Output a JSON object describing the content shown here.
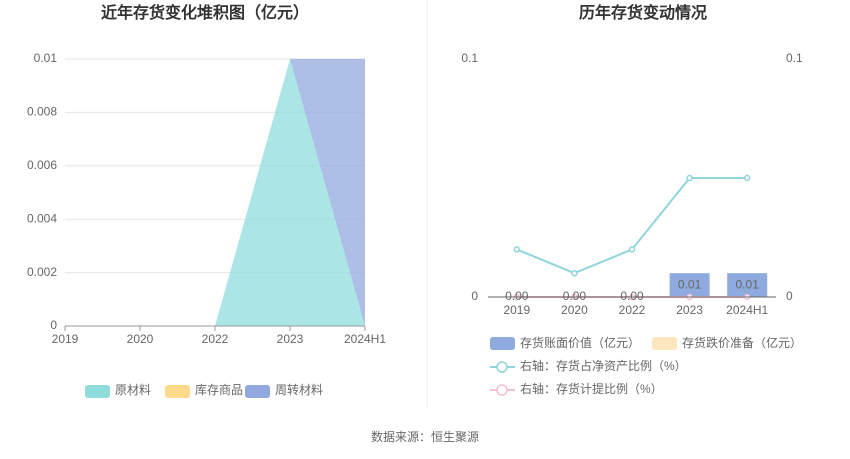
{
  "chart_data": [
    {
      "type": "area",
      "title": "近年存货变化堆积图（亿元）",
      "stacked": true,
      "grid": true,
      "legend": "bottom",
      "categories": [
        "2019",
        "2020",
        "2022",
        "2023",
        "2024H1"
      ],
      "series": [
        {
          "name": "原材料",
          "color": "#8fdcdc",
          "values": [
            0,
            0,
            0,
            0.01,
            0
          ]
        },
        {
          "name": "库存商品",
          "color": "#fdd98b",
          "values": [
            0,
            0,
            0,
            0,
            0
          ]
        },
        {
          "name": "周转材料",
          "color": "#91a9df",
          "values": [
            0,
            0,
            0,
            0,
            0.01
          ]
        }
      ],
      "ylim": [
        0,
        0.01
      ],
      "yticks": [
        0,
        0.002,
        0.004,
        0.006,
        0.008,
        0.01
      ]
    },
    {
      "type": "bar",
      "title": "历年存货变动情况",
      "stacked": true,
      "legend": "bottom",
      "categories": [
        "2019",
        "2020",
        "2022",
        "2023",
        "2024H1"
      ],
      "series": [
        {
          "name": "存货账面价值（亿元）",
          "type": "bar",
          "color": "#8eaadf",
          "values": [
            0,
            0,
            0,
            0.01,
            0.01
          ],
          "value_labels": [
            "0.00",
            "0.00",
            "0.00",
            "0.01",
            "0.01"
          ]
        },
        {
          "name": "存货跌价准备（亿元）",
          "type": "bar",
          "color": "#fde6bd",
          "values": [
            0,
            0,
            0,
            0,
            0
          ]
        },
        {
          "name": "右轴：存货占净资产比例（%）",
          "type": "line",
          "axis": "y2",
          "color": "#8fd4dc",
          "values": [
            0.02,
            0.01,
            0.02,
            0.05,
            0.05
          ]
        },
        {
          "name": "右轴：存货计提比例（%）",
          "type": "line",
          "axis": "y2",
          "color": "#f2bfd6",
          "values": [
            0,
            0,
            0,
            0,
            0
          ]
        }
      ],
      "ylim": [
        0,
        0.1
      ],
      "yticks": [
        0,
        0.1
      ],
      "y2lim": [
        0,
        0.1
      ],
      "y2ticks": [
        0,
        0.1
      ]
    }
  ],
  "source": "数据来源：恒生聚源"
}
